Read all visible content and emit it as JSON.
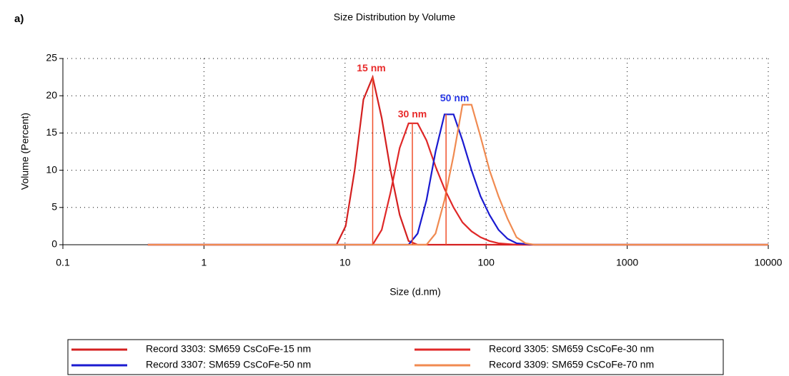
{
  "panel_label": "a)",
  "chart_data": {
    "type": "line",
    "title": "Size Distribution by Volume",
    "x_label": "Size (d.nm)",
    "y_label": "Volume (Percent)",
    "xscale": "log",
    "xlim": [
      0.1,
      10000
    ],
    "xticks": [
      0.1,
      1,
      10,
      100,
      1000,
      10000
    ],
    "ylim": [
      0,
      25
    ],
    "yticks": [
      0,
      5,
      10,
      15,
      20,
      25
    ],
    "grid": true,
    "series": [
      {
        "name": "Record 3303: SM659 CsCoFe-15 nm",
        "color": "#d42020",
        "x": [
          0.4,
          8.7,
          10.1,
          11.7,
          13.5,
          15.7,
          18.2,
          21,
          24.4,
          28.2,
          32.7,
          10000
        ],
        "values": [
          0,
          0,
          2.5,
          10,
          19.5,
          22.5,
          17,
          10,
          4,
          0.5,
          0,
          0
        ]
      },
      {
        "name": "Record 3305: SM659 CsCoFe-30 nm",
        "color": "#e02828",
        "x": [
          0.4,
          15.7,
          18.2,
          21,
          24.4,
          28.2,
          32.7,
          37.8,
          43.8,
          50.7,
          58.8,
          68,
          78.8,
          91.3,
          105.7,
          122.4,
          141.8,
          164.2,
          10000
        ],
        "values": [
          0,
          0,
          2,
          7,
          13,
          16.3,
          16.3,
          14,
          10.5,
          7.5,
          5,
          3,
          1.8,
          1,
          0.5,
          0.2,
          0.1,
          0,
          0
        ]
      },
      {
        "name": "Record 3307: SM659 CsCoFe-50 nm",
        "color": "#1a1ad0",
        "x": [
          0.4,
          28.2,
          32.7,
          37.8,
          43.8,
          50.7,
          58.8,
          68,
          78.8,
          91.3,
          105.7,
          122.4,
          141.8,
          164.2,
          190,
          220,
          10000
        ],
        "values": [
          0,
          0,
          1.5,
          6,
          12.5,
          17.5,
          17.5,
          14,
          10,
          6.5,
          4,
          2,
          0.8,
          0.2,
          0.1,
          0,
          0
        ]
      },
      {
        "name": "Record 3309: SM659 CsCoFe-70 nm",
        "color": "#f08a50",
        "x": [
          0.4,
          37.8,
          43.8,
          50.7,
          58.8,
          68,
          78.8,
          91.3,
          105.7,
          122.4,
          141.8,
          164.2,
          190,
          220,
          10000
        ],
        "values": [
          0,
          0,
          1.5,
          6,
          12,
          18.8,
          18.8,
          14.5,
          10,
          6.5,
          3.5,
          1,
          0.2,
          0,
          0
        ]
      }
    ],
    "peak_lines": {
      "color": "#f0502a",
      "x": [
        15.7,
        30,
        52
      ],
      "values": [
        22.5,
        16.3,
        17.5
      ],
      "labels": [
        "15 nm",
        "30 nm",
        "50 nm"
      ],
      "label_colors": [
        "#e82a2a",
        "#e82a2a",
        "#2a3ae8"
      ]
    }
  }
}
